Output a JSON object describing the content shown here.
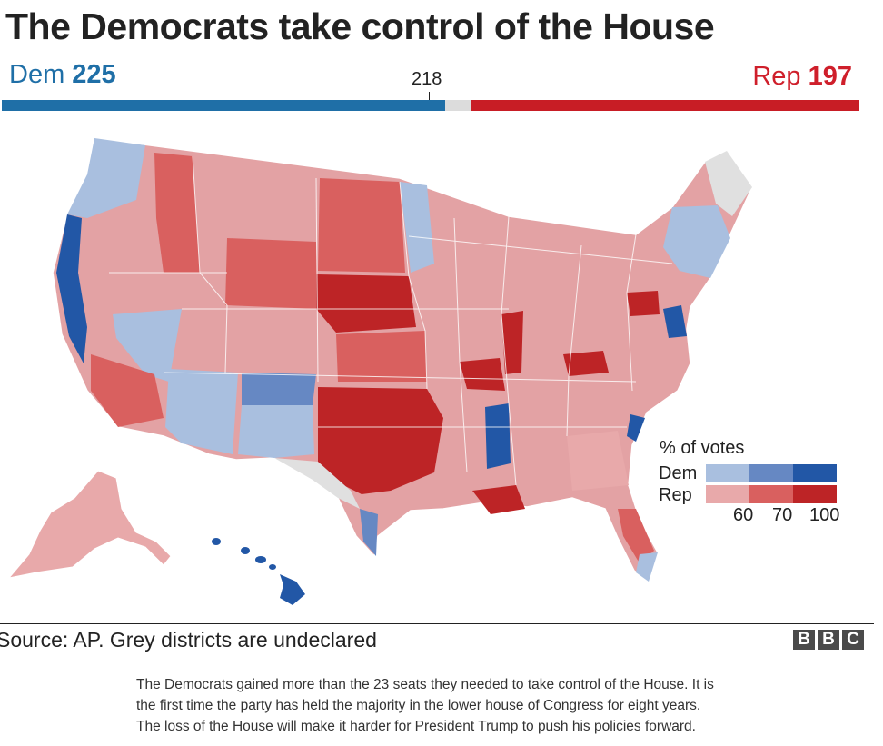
{
  "headline": "The Democrats take control of the House",
  "tally": {
    "dem_party": "Dem",
    "dem_seats": "225",
    "rep_party": "Rep",
    "rep_seats": "197",
    "majority_threshold": "218"
  },
  "seat_bar": {
    "dem": 225,
    "undeclared": 13,
    "rep": 197,
    "total": 435,
    "colors": {
      "dem": "#1f6fa7",
      "undeclared": "#dcdcdc",
      "rep": "#c81d25"
    }
  },
  "legend": {
    "title": "% of votes",
    "dem_label": "Dem",
    "rep_label": "Rep",
    "ticks": [
      "60",
      "70",
      "100"
    ],
    "dem_colors": [
      "#a9bfdf",
      "#6688c3",
      "#2257a6"
    ],
    "rep_colors": [
      "#e8a9aa",
      "#d9605f",
      "#bd2426"
    ],
    "undeclared_color": "#e0e0e0"
  },
  "source": "Source: AP. Grey districts are undeclared",
  "brand": {
    "letters": [
      "B",
      "B",
      "C"
    ]
  },
  "caption": "The Democrats gained more than the 23 seats they needed to take control of the House. It is the first time the party has held the majority in the lower house of Congress for eight years. The loss of the House will make it harder for President Trump to push his policies forward."
}
